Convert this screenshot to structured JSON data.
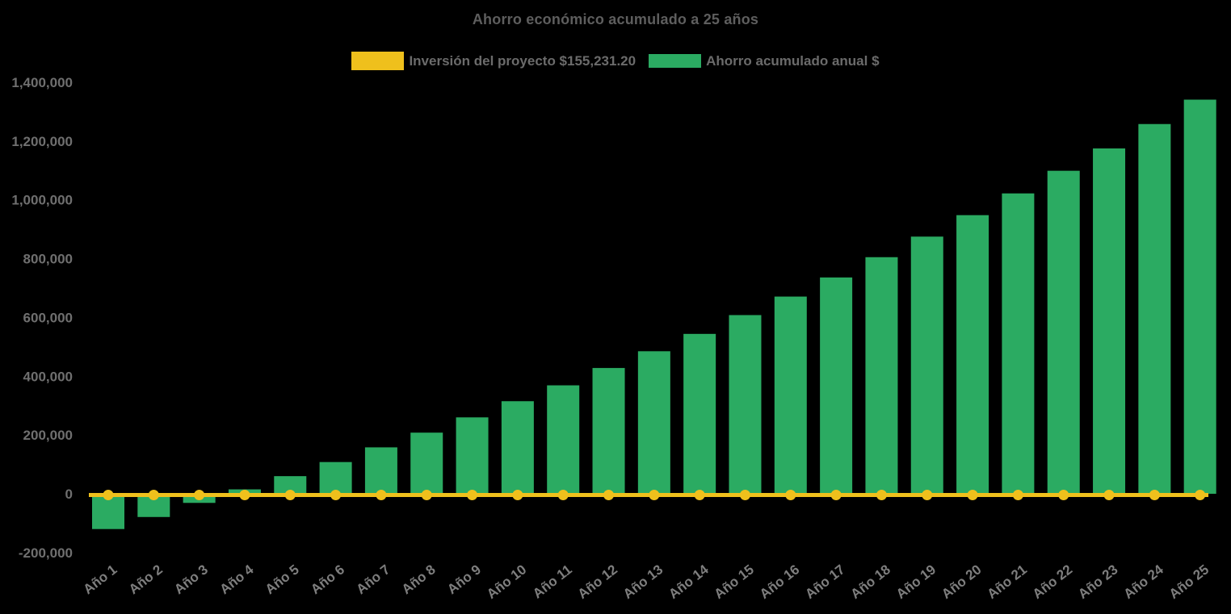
{
  "title": "Ahorro económico acumulado a 25 años",
  "legend": {
    "items": [
      {
        "label": "Inversión del proyecto $155,231.20",
        "color": "#EFC01C",
        "series_type": "line"
      },
      {
        "label": "Ahorro acumulado anual $",
        "color": "#2BAB62",
        "series_type": "bar"
      }
    ]
  },
  "colors": {
    "background": "#000000",
    "bar_green": "#2BAB62",
    "line_yellow": "#EFC01C",
    "title_text": "#5e5e5e",
    "axis_text": "#7e7e7e"
  },
  "chart_data": {
    "type": "bar",
    "title": "Ahorro económico acumulado a 25 años",
    "categories": [
      "Año 1",
      "Año 2",
      "Año 3",
      "Año 4",
      "Año 5",
      "Año 6",
      "Año 7",
      "Año 8",
      "Año 9",
      "Año 10",
      "Año 11",
      "Año 12",
      "Año 13",
      "Año 14",
      "Año 15",
      "Año 16",
      "Año 17",
      "Año 18",
      "Año 19",
      "Año 20",
      "Año 21",
      "Año 22",
      "Año 23",
      "Año 24",
      "Año 25"
    ],
    "series": [
      {
        "name": "Ahorro acumulado anual $",
        "type": "bar",
        "color": "#2BAB62",
        "values": [
          -120000,
          -79000,
          -31000,
          15000,
          60000,
          108000,
          158000,
          208000,
          260000,
          315000,
          369000,
          428000,
          485000,
          544000,
          608000,
          671000,
          736000,
          805000,
          875000,
          948000,
          1022000,
          1099000,
          1175000,
          1258000,
          1341000
        ]
      },
      {
        "name": "Inversión del proyecto $155,231.20",
        "type": "line",
        "color": "#EFC01C",
        "marker": "circle",
        "investment_value": 155231.2,
        "plotted_at": 0
      }
    ],
    "xlabel": "",
    "ylabel": "",
    "x_tick_rotation_deg": -38,
    "y_axis": {
      "min": -200000,
      "max": 1400000,
      "tick_step": 200000,
      "ticks": [
        {
          "value": 1400000,
          "label": "1,400,000"
        },
        {
          "value": 1200000,
          "label": "1,200,000"
        },
        {
          "value": 1000000,
          "label": "1,000,000"
        },
        {
          "value": 800000,
          "label": "800,000"
        },
        {
          "value": 600000,
          "label": "600,000"
        },
        {
          "value": 400000,
          "label": "400,000"
        },
        {
          "value": 200000,
          "label": "200,000"
        },
        {
          "value": 0,
          "label": "0"
        },
        {
          "value": -200000,
          "label": "-200,000"
        }
      ]
    },
    "grid": false,
    "legend_position": "top",
    "background": "#000000"
  }
}
